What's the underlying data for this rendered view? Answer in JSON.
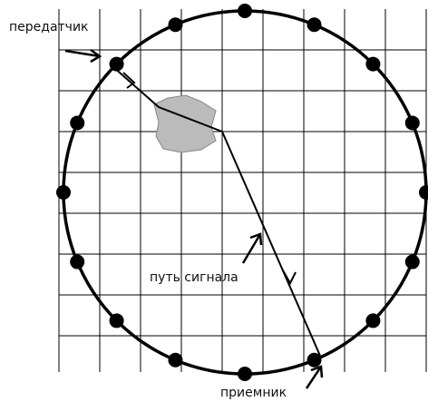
{
  "labels": {
    "transmitter": "передатчик",
    "signal_path": "путь сигнала",
    "receiver": "приемник"
  }
}
